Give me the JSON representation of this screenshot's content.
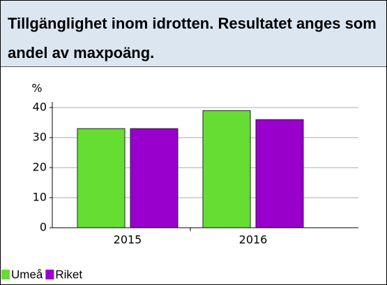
{
  "chart_data": {
    "type": "bar",
    "title": "Tillgänglighet inom idrotten. Resultatet anges som andel av maxpoäng.",
    "y_label": "%",
    "categories": [
      "2015",
      "2016"
    ],
    "series": [
      {
        "name": "Umeå",
        "color": "#66dd33",
        "values": [
          33,
          39
        ]
      },
      {
        "name": "Riket",
        "color": "#9900cc",
        "values": [
          33,
          36
        ]
      }
    ],
    "ylim": [
      0,
      40
    ],
    "yticks": [
      0,
      10,
      20,
      30,
      40
    ],
    "grid": true
  }
}
